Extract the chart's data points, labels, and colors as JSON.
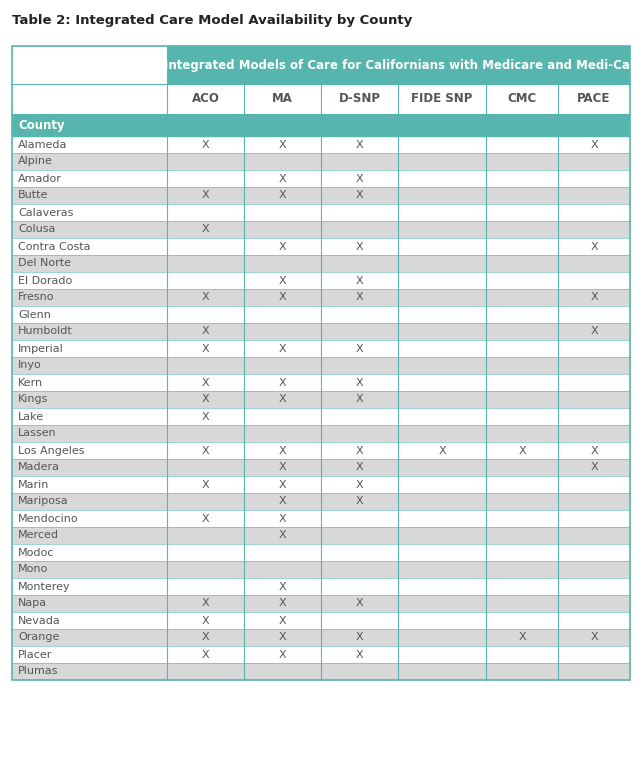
{
  "title": "Table 2: Integrated Care Model Availability by County",
  "header_main": "Integrated Models of Care for Californians with Medicare and Medi-Cal",
  "columns": [
    "",
    "ACO",
    "MA",
    "D-SNP",
    "FIDE SNP",
    "CMC",
    "PACE"
  ],
  "county_header": "County",
  "rows": [
    [
      "Alameda",
      "X",
      "X",
      "X",
      "",
      "",
      "X"
    ],
    [
      "Alpine",
      "",
      "",
      "",
      "",
      "",
      ""
    ],
    [
      "Amador",
      "",
      "X",
      "X",
      "",
      "",
      ""
    ],
    [
      "Butte",
      "X",
      "X",
      "X",
      "",
      "",
      ""
    ],
    [
      "Calaveras",
      "",
      "",
      "",
      "",
      "",
      ""
    ],
    [
      "Colusa",
      "X",
      "",
      "",
      "",
      "",
      ""
    ],
    [
      "Contra Costa",
      "",
      "X",
      "X",
      "",
      "",
      "X"
    ],
    [
      "Del Norte",
      "",
      "",
      "",
      "",
      "",
      ""
    ],
    [
      "El Dorado",
      "",
      "X",
      "X",
      "",
      "",
      ""
    ],
    [
      "Fresno",
      "X",
      "X",
      "X",
      "",
      "",
      "X"
    ],
    [
      "Glenn",
      "",
      "",
      "",
      "",
      "",
      ""
    ],
    [
      "Humboldt",
      "X",
      "",
      "",
      "",
      "",
      "X"
    ],
    [
      "Imperial",
      "X",
      "X",
      "X",
      "",
      "",
      ""
    ],
    [
      "Inyo",
      "",
      "",
      "",
      "",
      "",
      ""
    ],
    [
      "Kern",
      "X",
      "X",
      "X",
      "",
      "",
      ""
    ],
    [
      "Kings",
      "X",
      "X",
      "X",
      "",
      "",
      ""
    ],
    [
      "Lake",
      "X",
      "",
      "",
      "",
      "",
      ""
    ],
    [
      "Lassen",
      "",
      "",
      "",
      "",
      "",
      ""
    ],
    [
      "Los Angeles",
      "X",
      "X",
      "X",
      "X",
      "X",
      "X"
    ],
    [
      "Madera",
      "",
      "X",
      "X",
      "",
      "",
      "X"
    ],
    [
      "Marin",
      "X",
      "X",
      "X",
      "",
      "",
      ""
    ],
    [
      "Mariposa",
      "",
      "X",
      "X",
      "",
      "",
      ""
    ],
    [
      "Mendocino",
      "X",
      "X",
      "",
      "",
      "",
      ""
    ],
    [
      "Merced",
      "",
      "X",
      "",
      "",
      "",
      ""
    ],
    [
      "Modoc",
      "",
      "",
      "",
      "",
      "",
      ""
    ],
    [
      "Mono",
      "",
      "",
      "",
      "",
      "",
      ""
    ],
    [
      "Monterey",
      "",
      "X",
      "",
      "",
      "",
      ""
    ],
    [
      "Napa",
      "X",
      "X",
      "X",
      "",
      "",
      ""
    ],
    [
      "Nevada",
      "X",
      "X",
      "",
      "",
      "",
      ""
    ],
    [
      "Orange",
      "X",
      "X",
      "X",
      "",
      "X",
      "X"
    ],
    [
      "Placer",
      "X",
      "X",
      "X",
      "",
      "",
      ""
    ],
    [
      "Plumas",
      "",
      "",
      "",
      "",
      "",
      ""
    ]
  ],
  "teal_color": "#56B5AD",
  "gray_light": "#D8D8D8",
  "white": "#FFFFFF",
  "border_color": "#56B5AD",
  "text_color_header": "#FFFFFF",
  "text_color_data": "#555555",
  "title_fontsize": 9.5,
  "header_fontsize": 8.5,
  "col_header_fontsize": 8.5,
  "data_fontsize": 8.0
}
